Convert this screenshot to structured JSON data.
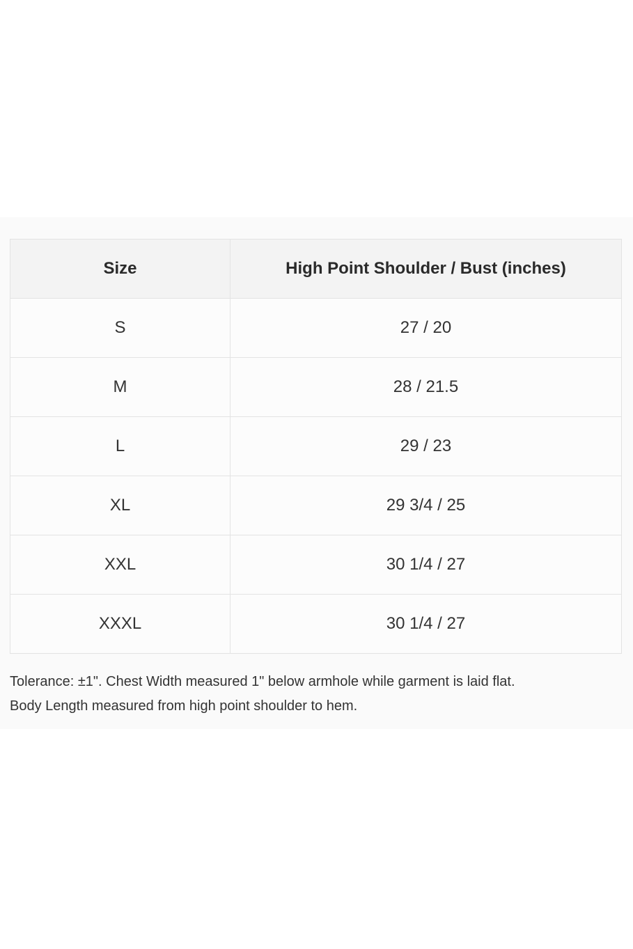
{
  "table": {
    "headers": [
      "Size",
      "High Point Shoulder / Bust (inches)"
    ],
    "rows": [
      [
        "S",
        "27 / 20"
      ],
      [
        "M",
        "28 / 21.5"
      ],
      [
        "L",
        "29 / 23"
      ],
      [
        "XL",
        "29 3/4 / 25"
      ],
      [
        "XXL",
        "30 1/4 / 27"
      ],
      [
        "XXXL",
        "30 1/4 / 27"
      ]
    ]
  },
  "notes": [
    "Tolerance: ±1\". Chest Width measured 1\" below armhole while garment is laid flat.",
    "Body Length measured from high point shoulder to hem."
  ]
}
